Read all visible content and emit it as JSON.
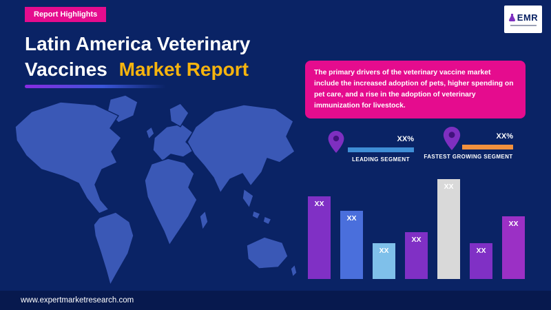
{
  "page": {
    "background": "#0a2365",
    "accent_pink": "#e50c8e",
    "accent_yellow": "#f6b40e"
  },
  "header": {
    "badge_label": "Report Highlights",
    "logo_text": "EMR"
  },
  "title": {
    "line1": "Latin America Veterinary",
    "line2_white": "Vaccines",
    "line2_accent": "Market Report"
  },
  "callout": {
    "text": "The primary drivers of the veterinary vaccine market include the increased adoption of pets, higher spending on pet care, and a rise in the adoption of veterinary immunization for livestock."
  },
  "legend": {
    "leading": {
      "value": "XX%",
      "label": "LEADING SEGMENT",
      "color": "#3f8ed6"
    },
    "fastest": {
      "value": "XX%",
      "label": "FASTEST GROWING SEGMENT",
      "color": "#f2913d"
    }
  },
  "chart_data": {
    "type": "bar",
    "labels": [
      "XX",
      "XX",
      "XX",
      "XX",
      "XX",
      "XX",
      "XX"
    ],
    "values": [
      83,
      68,
      36,
      47,
      100,
      36,
      63
    ],
    "ylim": [
      0,
      100
    ],
    "colors": [
      "#8030c5",
      "#4a6fdc",
      "#7fc0ea",
      "#8030c5",
      "#d9d9d9",
      "#8030c5",
      "#9b30c5"
    ],
    "label_color": "#ffffff",
    "title": ""
  },
  "footer": {
    "url": "www.expertmarketresearch.com"
  }
}
